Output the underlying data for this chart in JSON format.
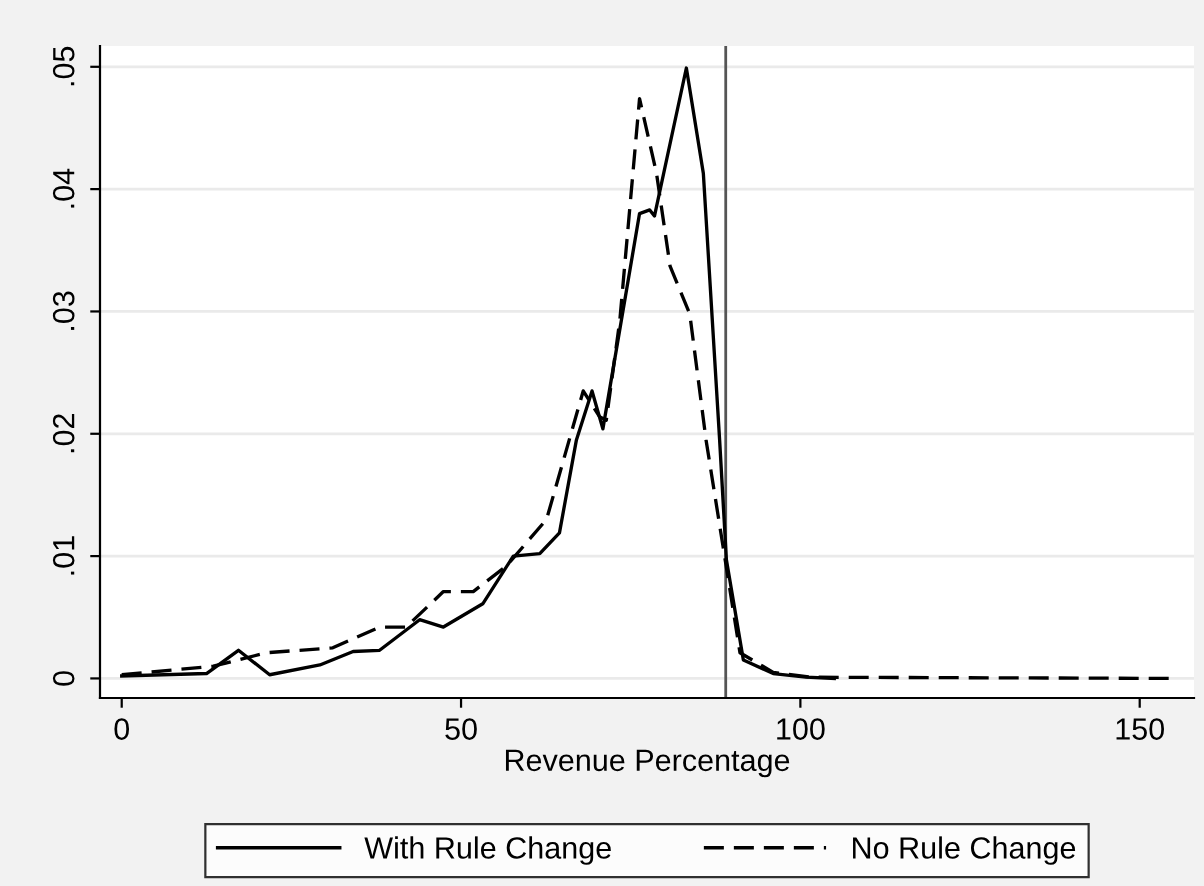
{
  "chart_data": {
    "type": "line",
    "xlabel": "Revenue Percentage",
    "xlim": [
      -3.2,
      158
    ],
    "xticks": [
      0,
      50,
      100,
      150
    ],
    "ylim": [
      -0.0016,
      0.0517
    ],
    "yticks": [
      {
        "value": 0,
        "label": "0"
      },
      {
        "value": 0.01,
        "label": ".01"
      },
      {
        "value": 0.02,
        "label": ".02"
      },
      {
        "value": 0.03,
        "label": ".03"
      },
      {
        "value": 0.04,
        "label": ".04"
      },
      {
        "value": 0.05,
        "label": ".05"
      }
    ],
    "grid": "y",
    "legend": "bottom",
    "ref_lines": [
      {
        "axis": "x",
        "value": 89,
        "color": "#555555"
      }
    ],
    "series": [
      {
        "name": "With Rule Change",
        "color": "#000000",
        "line_style": "solid",
        "x": [
          0,
          12.5,
          17.2,
          21.8,
          29.2,
          34.1,
          38,
          43.9,
          47.4,
          53.2,
          57.7,
          61.6,
          64.5,
          67,
          69.3,
          70.9,
          76.3,
          77.8,
          78.5,
          83.2,
          85.7,
          88.1,
          89.1,
          91.6,
          96,
          100.8,
          105
        ],
        "values": [
          0.0002,
          0.0004,
          0.0023,
          0.0003,
          0.0011,
          0.0022,
          0.0023,
          0.0048,
          0.0042,
          0.0061,
          0.01,
          0.0102,
          0.0119,
          0.0195,
          0.0235,
          0.0204,
          0.038,
          0.0383,
          0.0378,
          0.0499,
          0.0413,
          0.0195,
          0.0097,
          0.0015,
          0.0004,
          0.0001,
          0
        ]
      },
      {
        "name": "No Rule Change",
        "color": "#000000",
        "line_style": "dashed",
        "x": [
          0,
          13.5,
          21.3,
          31.1,
          38,
          41.9,
          47.4,
          51.8,
          56.7,
          62.6,
          68,
          70.4,
          71.4,
          73.4,
          76.3,
          78.8,
          80.8,
          83.7,
          86.1,
          88.6,
          91.1,
          96,
          101.7,
          155
        ],
        "values": [
          0.0003,
          0.001,
          0.0021,
          0.0025,
          0.0042,
          0.0042,
          0.0071,
          0.0071,
          0.0092,
          0.013,
          0.0235,
          0.0214,
          0.0211,
          0.0293,
          0.0474,
          0.0413,
          0.0337,
          0.0298,
          0.0195,
          0.0108,
          0.0021,
          0.0005,
          0.0001,
          0
        ]
      }
    ]
  }
}
